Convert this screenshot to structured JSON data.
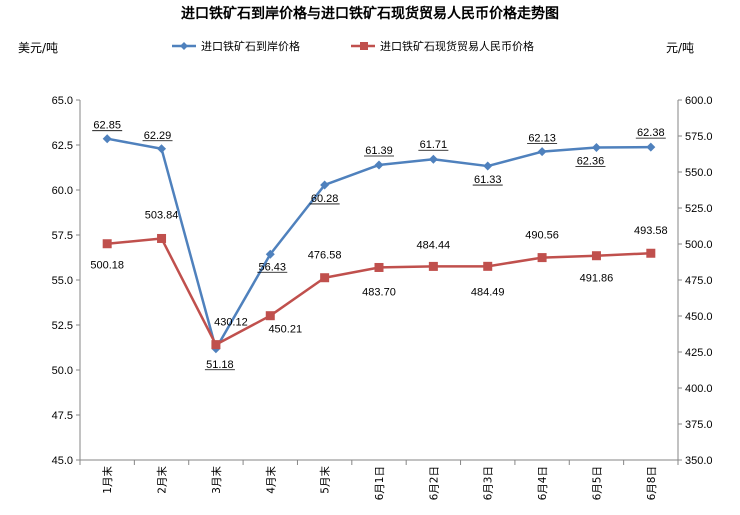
{
  "chart_data": {
    "type": "line",
    "title": "进口铁矿石到岸价格与进口铁矿石现货贸易人民币价格走势图",
    "ylabel_left": "美元/吨",
    "ylabel_right": "元/吨",
    "categories": [
      "1月末",
      "2月末",
      "3月末",
      "4月末",
      "5月末",
      "6月1日",
      "6月2日",
      "6月3日",
      "6月4日",
      "6月5日",
      "6月8日"
    ],
    "left_axis": {
      "min": 45.0,
      "max": 65.0,
      "step": 2.5,
      "ticks": [
        "45.0",
        "47.5",
        "50.0",
        "52.5",
        "55.0",
        "57.5",
        "60.0",
        "62.5",
        "65.0"
      ]
    },
    "right_axis": {
      "min": 350.0,
      "max": 600.0,
      "step": 25.0,
      "ticks": [
        "350.0",
        "375.0",
        "400.0",
        "425.0",
        "450.0",
        "475.0",
        "500.0",
        "525.0",
        "550.0",
        "575.0",
        "600.0"
      ]
    },
    "series": [
      {
        "name": "进口铁矿石到岸价格",
        "axis": "left",
        "color": "#4f81bd",
        "marker": "diamond",
        "values": [
          62.85,
          62.29,
          51.18,
          56.43,
          60.28,
          61.39,
          61.71,
          61.33,
          62.13,
          62.36,
          62.38
        ],
        "labels": [
          "62.85",
          "62.29",
          "51.18",
          "56.43",
          "60.28",
          "61.39",
          "61.71",
          "61.33",
          "62.13",
          "62.36",
          "62.38"
        ]
      },
      {
        "name": "进口铁矿石现货贸易人民币价格",
        "axis": "right",
        "color": "#c0504d",
        "marker": "square",
        "values": [
          500.18,
          503.84,
          430.12,
          450.21,
          476.58,
          483.7,
          484.44,
          484.49,
          490.56,
          491.86,
          493.58
        ],
        "labels": [
          "500.18",
          "503.84",
          "430.12",
          "450.21",
          "476.58",
          "483.70",
          "484.44",
          "484.49",
          "490.56",
          "491.86",
          "493.58"
        ]
      }
    ],
    "legend_position": "top"
  }
}
